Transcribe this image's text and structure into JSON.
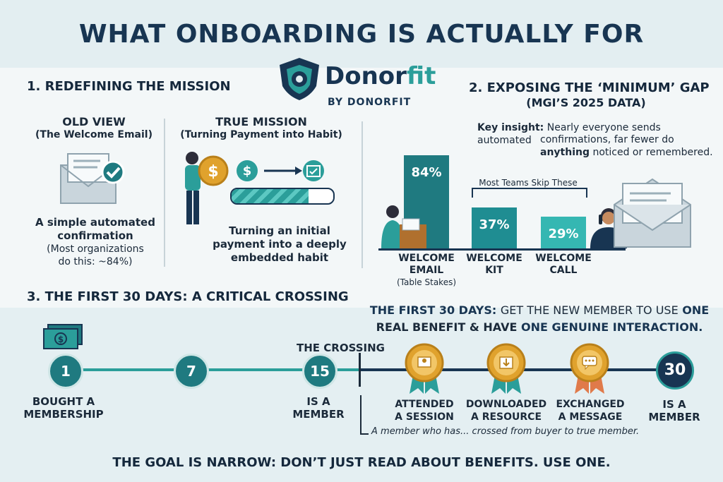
{
  "title": "WHAT ONBOARDING IS ACTUALLY FOR",
  "brand": {
    "name_a": "Donor",
    "name_b": "fit",
    "byline": "BY DONORFIT"
  },
  "section1": {
    "heading": "1. REDEFINING THE MISSION",
    "old_title": "OLD VIEW",
    "old_sub": "(The Welcome Email)",
    "old_desc1": "A simple automated",
    "old_desc2": "confirmation",
    "old_note1": "(Most organizations",
    "old_note2": "do this: ~84%)",
    "true_title": "TRUE MISSION",
    "true_sub": "(Turning Payment into Habit)",
    "true_desc1": "Turning an initial",
    "true_desc2": "payment into a deeply",
    "true_desc3": "embedded habit"
  },
  "section2": {
    "heading": "2. EXPOSING THE ‘MINIMUM’ GAP",
    "sub": "(MGI’S 2025 DATA)",
    "insight_label": "Key insight:",
    "insight_1": "Nearly everyone sends automated",
    "insight_2": "confirmations, far fewer do",
    "insight_3a": "anything",
    "insight_3b": "noticed or remembered.",
    "skip_label": "Most Teams Skip These"
  },
  "chart_data": {
    "type": "bar",
    "categories": [
      "WELCOME EMAIL",
      "WELCOME KIT",
      "WELCOME CALL"
    ],
    "values": [
      84,
      37,
      29
    ],
    "value_labels": [
      "84%",
      "37%",
      "29%"
    ],
    "category_notes": [
      "(Table Stakes)",
      "",
      ""
    ],
    "ylim": [
      0,
      100
    ],
    "colors": [
      "#1f7a80",
      "#1f8d92",
      "#35b7b2"
    ]
  },
  "section3": {
    "heading": "3. THE FIRST 30 DAYS: A CRITICAL CROSSING",
    "goal_a": "THE FIRST 30 DAYS:",
    "goal_b": "GET THE NEW MEMBER TO USE",
    "goal_c": "ONE",
    "goal_d": "REAL BENEFIT & HAVE",
    "goal_e": "ONE GENUINE INTERACTION.",
    "crossing": "THE CROSSING",
    "node1": "1",
    "node7": "7",
    "node15": "15",
    "node30": "30",
    "label1a": "BOUGHT A",
    "label1b": "MEMBERSHIP",
    "label15a": "IS A",
    "label15b": "MEMBER",
    "badge1a": "ATTENDED",
    "badge1b": "A SESSION",
    "badge2a": "DOWNLOADED",
    "badge2b": "A RESOURCE",
    "badge3a": "EXCHANGED",
    "badge3b": "A MESSAGE",
    "label30a": "IS A",
    "label30b": "MEMBER",
    "footnote": "A member who has... crossed from buyer to true member."
  },
  "footer": "THE GOAL IS NARROW: DON’T JUST READ ABOUT BENEFITS. USE ONE.",
  "colors": {
    "teal": "#1f7a80",
    "navy": "#183552",
    "gold": "#e0a22d",
    "light_teal": "#35b7b2"
  }
}
